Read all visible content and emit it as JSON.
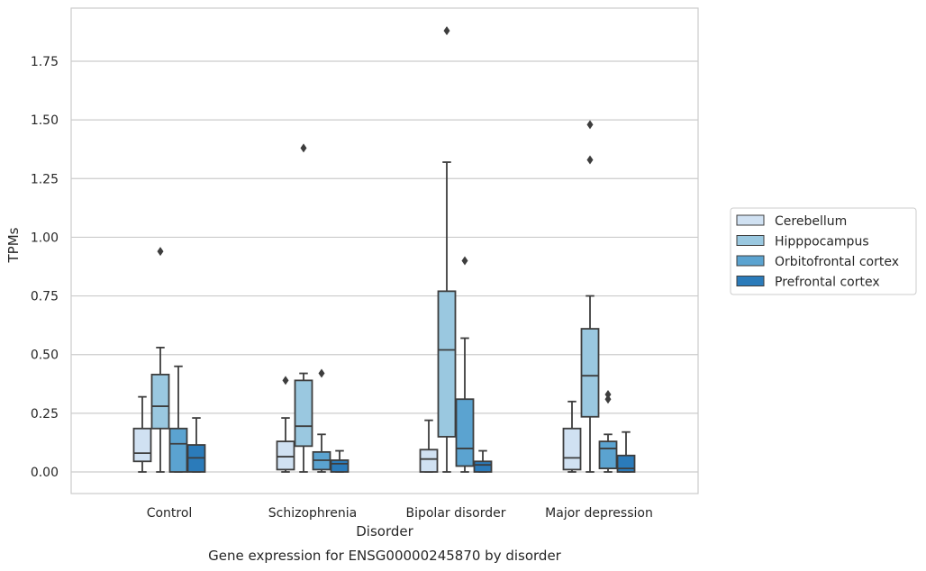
{
  "chart_data": {
    "type": "box",
    "caption": "Gene expression for ENSG00000245870 by disorder",
    "xlabel": "Disorder",
    "ylabel": "TPMs",
    "ylim": [
      -0.09,
      1.97
    ],
    "yticks": [
      0.0,
      0.25,
      0.5,
      0.75,
      1.0,
      1.25,
      1.5,
      1.75
    ],
    "ytick_labels": [
      "0.00",
      "0.25",
      "0.50",
      "0.75",
      "1.00",
      "1.25",
      "1.50",
      "1.75"
    ],
    "grid": true,
    "legend_position": "outside-right",
    "categories": [
      "Control",
      "Schizophrenia",
      "Bipolar disorder",
      "Major depression"
    ],
    "series": [
      {
        "name": "Cerebellum",
        "color": "#d0e1f2",
        "boxes": [
          {
            "whislo": 0.0,
            "q1": 0.045,
            "med": 0.08,
            "q3": 0.185,
            "whishi": 0.32,
            "fliers": []
          },
          {
            "whislo": 0.0,
            "q1": 0.01,
            "med": 0.065,
            "q3": 0.13,
            "whishi": 0.23,
            "fliers": [
              0.39
            ]
          },
          {
            "whislo": 0.0,
            "q1": 0.0,
            "med": 0.055,
            "q3": 0.095,
            "whishi": 0.22,
            "fliers": []
          },
          {
            "whislo": 0.0,
            "q1": 0.01,
            "med": 0.06,
            "q3": 0.185,
            "whishi": 0.3,
            "fliers": []
          }
        ]
      },
      {
        "name": "Hipppocampus",
        "color": "#9ac8e0",
        "boxes": [
          {
            "whislo": 0.0,
            "q1": 0.185,
            "med": 0.28,
            "q3": 0.415,
            "whishi": 0.53,
            "fliers": [
              0.94
            ]
          },
          {
            "whislo": 0.0,
            "q1": 0.11,
            "med": 0.195,
            "q3": 0.39,
            "whishi": 0.42,
            "fliers": [
              1.38
            ]
          },
          {
            "whislo": 0.0,
            "q1": 0.15,
            "med": 0.52,
            "q3": 0.77,
            "whishi": 1.32,
            "fliers": [
              1.88
            ]
          },
          {
            "whislo": 0.0,
            "q1": 0.235,
            "med": 0.41,
            "q3": 0.61,
            "whishi": 0.75,
            "fliers": [
              1.33,
              1.48
            ]
          }
        ]
      },
      {
        "name": "Orbitofrontal cortex",
        "color": "#5ba3d0",
        "boxes": [
          {
            "whislo": 0.0,
            "q1": 0.0,
            "med": 0.12,
            "q3": 0.185,
            "whishi": 0.45,
            "fliers": []
          },
          {
            "whislo": 0.0,
            "q1": 0.01,
            "med": 0.05,
            "q3": 0.085,
            "whishi": 0.16,
            "fliers": [
              0.42
            ]
          },
          {
            "whislo": 0.0,
            "q1": 0.025,
            "med": 0.1,
            "q3": 0.31,
            "whishi": 0.57,
            "fliers": [
              0.9
            ]
          },
          {
            "whislo": 0.0,
            "q1": 0.015,
            "med": 0.1,
            "q3": 0.13,
            "whishi": 0.16,
            "fliers": [
              0.31,
              0.33
            ]
          }
        ]
      },
      {
        "name": "Prefrontal cortex",
        "color": "#2b7bba",
        "boxes": [
          {
            "whislo": 0.0,
            "q1": 0.0,
            "med": 0.06,
            "q3": 0.115,
            "whishi": 0.23,
            "fliers": []
          },
          {
            "whislo": 0.0,
            "q1": 0.0,
            "med": 0.035,
            "q3": 0.05,
            "whishi": 0.09,
            "fliers": []
          },
          {
            "whislo": 0.0,
            "q1": 0.0,
            "med": 0.03,
            "q3": 0.045,
            "whishi": 0.09,
            "fliers": []
          },
          {
            "whislo": 0.0,
            "q1": 0.0,
            "med": 0.015,
            "q3": 0.07,
            "whishi": 0.17,
            "fliers": []
          }
        ]
      }
    ],
    "colors": {
      "grid": "#cccccc",
      "frame": "#cccccc",
      "box_edge": "#3d3d3d",
      "text": "#262626"
    }
  }
}
